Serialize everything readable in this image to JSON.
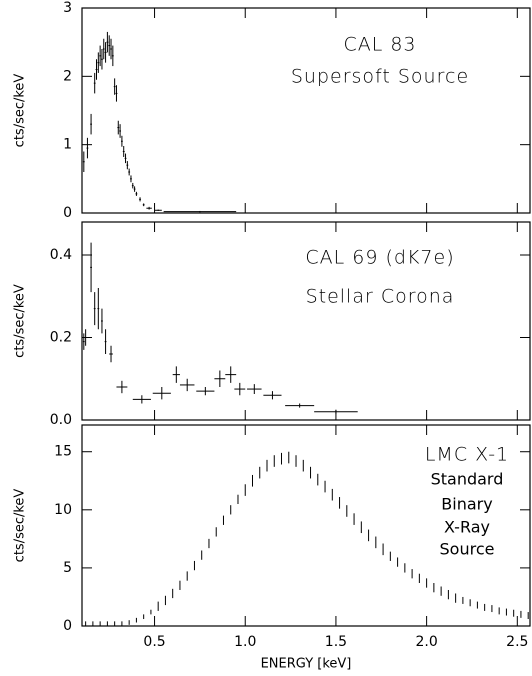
{
  "chart_data": [
    {
      "type": "errorbar",
      "y_label": "cts/sec/keV",
      "annotations": [
        "CAL 83",
        "Supersoft Source"
      ],
      "color": "#000000",
      "xlim": [
        0.1,
        2.57
      ],
      "ylim": [
        0,
        3
      ],
      "yticks": [
        0,
        1,
        2,
        3
      ],
      "x": [
        0.11,
        0.13,
        0.15,
        0.17,
        0.18,
        0.19,
        0.2,
        0.21,
        0.22,
        0.23,
        0.24,
        0.25,
        0.26,
        0.27,
        0.28,
        0.29,
        0.3,
        0.31,
        0.32,
        0.33,
        0.34,
        0.35,
        0.36,
        0.37,
        0.38,
        0.39,
        0.4,
        0.42,
        0.44,
        0.47,
        0.52,
        0.75
      ],
      "values": [
        0.75,
        0.95,
        1.3,
        1.9,
        2.1,
        2.2,
        2.3,
        2.25,
        2.4,
        2.35,
        2.5,
        2.45,
        2.4,
        2.3,
        1.85,
        1.75,
        1.25,
        1.2,
        1.05,
        0.9,
        0.8,
        0.7,
        0.6,
        0.5,
        0.4,
        0.35,
        0.28,
        0.2,
        0.12,
        0.07,
        0.04,
        0.02
      ],
      "yerr": [
        0.15,
        0.15,
        0.15,
        0.15,
        0.15,
        0.15,
        0.15,
        0.15,
        0.15,
        0.15,
        0.15,
        0.15,
        0.15,
        0.15,
        0.12,
        0.12,
        0.1,
        0.1,
        0.08,
        0.08,
        0.07,
        0.06,
        0.05,
        0.05,
        0.04,
        0.04,
        0.03,
        0.03,
        0.02,
        0.02,
        0.01,
        0.01
      ],
      "xerr": [
        0.005,
        0.005,
        0.005,
        0.005,
        0.005,
        0.005,
        0.005,
        0.005,
        0.005,
        0.005,
        0.005,
        0.005,
        0.005,
        0.005,
        0.005,
        0.005,
        0.005,
        0.005,
        0.005,
        0.005,
        0.005,
        0.005,
        0.005,
        0.005,
        0.005,
        0.005,
        0.005,
        0.005,
        0.005,
        0.015,
        0.02,
        0.2
      ]
    },
    {
      "type": "errorbar",
      "y_label": "cts/sec/keV",
      "annotations": [
        "CAL 69 (dK7e)",
        "Stellar Corona"
      ],
      "color": "#000000",
      "xlim": [
        0.1,
        2.57
      ],
      "ylim": [
        0,
        0.48
      ],
      "yticks": [
        {
          "value": 0,
          "label": "0.0"
        },
        0.2,
        0.4
      ],
      "x": [
        0.11,
        0.12,
        0.15,
        0.17,
        0.19,
        0.21,
        0.23,
        0.26,
        0.32,
        0.43,
        0.54,
        0.62,
        0.68,
        0.78,
        0.86,
        0.92,
        0.97,
        1.05,
        1.15,
        1.3,
        1.5
      ],
      "values": [
        0.19,
        0.2,
        0.37,
        0.27,
        0.27,
        0.24,
        0.19,
        0.16,
        0.08,
        0.05,
        0.065,
        0.11,
        0.085,
        0.07,
        0.1,
        0.11,
        0.075,
        0.075,
        0.06,
        0.035,
        0.02
      ],
      "yerr": [
        0.02,
        0.02,
        0.06,
        0.04,
        0.05,
        0.03,
        0.03,
        0.02,
        0.015,
        0.01,
        0.015,
        0.02,
        0.015,
        0.01,
        0.02,
        0.02,
        0.015,
        0.012,
        0.01,
        0.005,
        0.005
      ],
      "xerr": [
        0.005,
        0.005,
        0.005,
        0.005,
        0.005,
        0.005,
        0.005,
        0.01,
        0.03,
        0.05,
        0.05,
        0.02,
        0.04,
        0.05,
        0.03,
        0.03,
        0.03,
        0.04,
        0.05,
        0.08,
        0.12
      ]
    },
    {
      "type": "errorbar",
      "y_label": "cts/sec/keV",
      "x_label": "ENERGY [keV]",
      "annotations": [
        "LMC X-1",
        "Standard",
        "Binary",
        "X-Ray",
        "Source"
      ],
      "color": "#000000",
      "xlim": [
        0.1,
        2.57
      ],
      "ylim": [
        0,
        17.3
      ],
      "yticks": [
        0,
        5,
        10,
        15
      ],
      "xticks": [
        0.5,
        {
          "value": 1,
          "label": "1.0"
        },
        1.5,
        {
          "value": 2,
          "label": "2.0"
        },
        2.5
      ],
      "x": [
        0.12,
        0.16,
        0.2,
        0.24,
        0.28,
        0.32,
        0.36,
        0.4,
        0.44,
        0.48,
        0.52,
        0.56,
        0.6,
        0.64,
        0.68,
        0.72,
        0.76,
        0.8,
        0.84,
        0.88,
        0.92,
        0.96,
        1.0,
        1.04,
        1.08,
        1.12,
        1.16,
        1.2,
        1.24,
        1.28,
        1.32,
        1.36,
        1.4,
        1.44,
        1.48,
        1.52,
        1.56,
        1.6,
        1.64,
        1.68,
        1.72,
        1.76,
        1.8,
        1.84,
        1.88,
        1.92,
        1.96,
        2.0,
        2.04,
        2.08,
        2.12,
        2.16,
        2.2,
        2.24,
        2.28,
        2.32,
        2.36,
        2.4,
        2.44,
        2.48,
        2.52,
        2.56
      ],
      "values": [
        0.2,
        0.2,
        0.2,
        0.2,
        0.2,
        0.2,
        0.3,
        0.5,
        0.8,
        1.2,
        1.7,
        2.2,
        2.8,
        3.5,
        4.3,
        5.2,
        6.1,
        7.1,
        8.1,
        9.1,
        10.0,
        10.9,
        11.7,
        12.5,
        13.2,
        13.8,
        14.2,
        14.4,
        14.5,
        14.2,
        13.8,
        13.2,
        12.6,
        12.0,
        11.3,
        10.6,
        9.9,
        9.2,
        8.5,
        7.8,
        7.2,
        6.6,
        6.0,
        5.5,
        5.0,
        4.5,
        4.1,
        3.7,
        3.3,
        3.0,
        2.7,
        2.4,
        2.2,
        2.0,
        1.8,
        1.6,
        1.5,
        1.3,
        1.2,
        1.1,
        1.0,
        0.9
      ],
      "yerr": [
        0.2,
        0.2,
        0.2,
        0.2,
        0.2,
        0.2,
        0.2,
        0.2,
        0.2,
        0.2,
        0.4,
        0.4,
        0.4,
        0.4,
        0.4,
        0.4,
        0.4,
        0.4,
        0.4,
        0.4,
        0.4,
        0.4,
        0.5,
        0.5,
        0.5,
        0.5,
        0.5,
        0.5,
        0.5,
        0.5,
        0.5,
        0.5,
        0.5,
        0.5,
        0.5,
        0.5,
        0.5,
        0.5,
        0.5,
        0.5,
        0.5,
        0.5,
        0.4,
        0.4,
        0.4,
        0.4,
        0.4,
        0.4,
        0.4,
        0.4,
        0.4,
        0.4,
        0.3,
        0.3,
        0.3,
        0.3,
        0.3,
        0.3,
        0.3,
        0.3,
        0.3,
        0.3
      ]
    }
  ]
}
